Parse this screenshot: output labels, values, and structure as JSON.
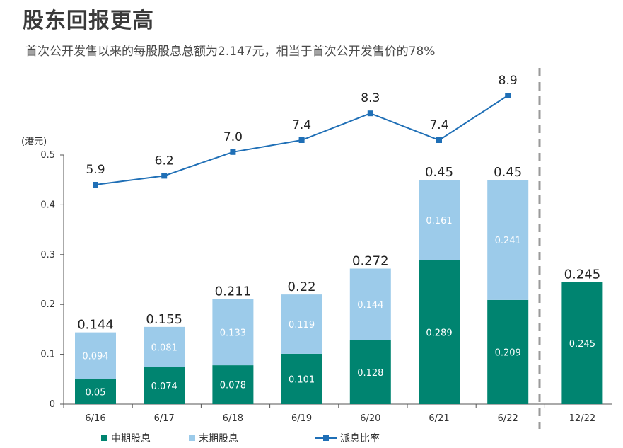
{
  "title": "股东回报更高",
  "subtitle": "首次公开发售以来的每股股息总额为2.147元，相当于首次公开发售价的78%",
  "chart_data": {
    "type": "bar",
    "stacked": true,
    "categories": [
      "6/16",
      "6/17",
      "6/18",
      "6/19",
      "6/20",
      "6/21",
      "6/22",
      "12/22"
    ],
    "unit_label": "(港元)",
    "ylim": [
      0,
      0.5
    ],
    "yticks": [
      "0",
      "0.1",
      "0.2",
      "0.3",
      "0.4",
      "0.5"
    ],
    "series": [
      {
        "name": "中期股息",
        "color": "#008470",
        "values": [
          0.05,
          0.074,
          0.078,
          0.101,
          0.128,
          0.289,
          0.209,
          0.245
        ],
        "labels": [
          "0.05",
          "0.074",
          "0.078",
          "0.101",
          "0.128",
          "0.289",
          "0.209",
          "0.245"
        ]
      },
      {
        "name": "末期股息",
        "color": "#9ccbea",
        "values": [
          0.094,
          0.081,
          0.133,
          0.119,
          0.144,
          0.161,
          0.241,
          null
        ],
        "labels": [
          "0.094",
          "0.081",
          "0.133",
          "0.119",
          "0.144",
          "0.161",
          "0.241",
          ""
        ]
      }
    ],
    "totals": [
      "0.144",
      "0.155",
      "0.211",
      "0.22",
      "0.272",
      "0.45",
      "0.45",
      "0.245"
    ],
    "line_series": {
      "name": "派息比率",
      "color": "#1f6fb6",
      "values": [
        5.9,
        6.2,
        7.0,
        7.4,
        8.3,
        7.4,
        8.9
      ],
      "labels": [
        "5.9",
        "6.2",
        "7.0",
        "7.4",
        "8.3",
        "7.4",
        "8.9"
      ]
    },
    "divider": "dashed vertical line between 6/22 and 12/22",
    "legend_position": "bottom"
  }
}
